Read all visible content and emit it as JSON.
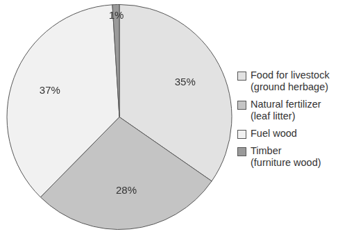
{
  "chart_data": {
    "type": "pie",
    "categories": [
      "Food for livestock (ground herbage)",
      "Natural fertilizer (leaf litter)",
      "Fuel wood",
      "Timber (furniture wood)"
    ],
    "values": [
      35,
      28,
      37,
      1
    ],
    "value_labels": [
      "35%",
      "28%",
      "37%",
      "1%"
    ],
    "colors": [
      "#e2e2e2",
      "#c4c4c4",
      "#f1f1f1",
      "#9a9a9a"
    ],
    "legend": "right",
    "data_labels": true
  }
}
